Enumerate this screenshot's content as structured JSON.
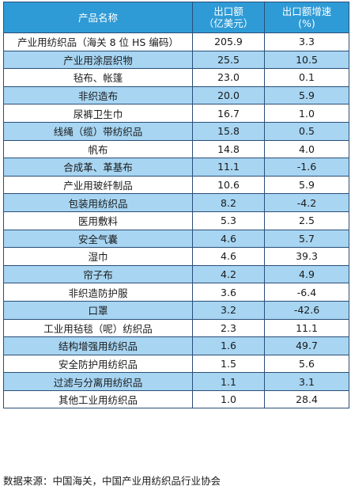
{
  "table": {
    "headers": {
      "product": "产品名称",
      "export_line1": "出口额",
      "export_line2": "（亿美元）",
      "growth_line1": "出口额增速",
      "growth_line2": "(%)"
    },
    "rows": [
      {
        "product": "产业用纺织品（海关 8 位 HS 编码）",
        "export": "205.9",
        "growth": "3.3",
        "shaded": false
      },
      {
        "product": "产业用涂层织物",
        "export": "25.5",
        "growth": "10.5",
        "shaded": true
      },
      {
        "product": "毡布、帐篷",
        "export": "23.0",
        "growth": "0.1",
        "shaded": false
      },
      {
        "product": "非织造布",
        "export": "20.0",
        "growth": "5.9",
        "shaded": true
      },
      {
        "product": "尿裤卫生巾",
        "export": "16.7",
        "growth": "1.0",
        "shaded": false
      },
      {
        "product": "线绳（缆）带纺织品",
        "export": "15.8",
        "growth": "0.5",
        "shaded": true
      },
      {
        "product": "帆布",
        "export": "14.8",
        "growth": "4.0",
        "shaded": false
      },
      {
        "product": "合成革、革基布",
        "export": "11.1",
        "growth": "-1.6",
        "shaded": true
      },
      {
        "product": "产业用玻纤制品",
        "export": "10.6",
        "growth": "5.9",
        "shaded": false
      },
      {
        "product": "包装用纺织品",
        "export": "8.2",
        "growth": "-4.2",
        "shaded": true
      },
      {
        "product": "医用敷料",
        "export": "5.3",
        "growth": "2.5",
        "shaded": false
      },
      {
        "product": "安全气囊",
        "export": "4.6",
        "growth": "5.7",
        "shaded": true
      },
      {
        "product": "湿巾",
        "export": "4.6",
        "growth": "39.3",
        "shaded": false
      },
      {
        "product": "帘子布",
        "export": "4.2",
        "growth": "4.9",
        "shaded": true
      },
      {
        "product": "非织造防护服",
        "export": "3.6",
        "growth": "-6.4",
        "shaded": false
      },
      {
        "product": "口罩",
        "export": "3.2",
        "growth": "-42.6",
        "shaded": true
      },
      {
        "product": "工业用毡毯（呢）纺织品",
        "export": "2.3",
        "growth": "11.1",
        "shaded": false
      },
      {
        "product": "结构增强用纺织品",
        "export": "1.6",
        "growth": "49.7",
        "shaded": true
      },
      {
        "product": "安全防护用纺织品",
        "export": "1.5",
        "growth": "5.6",
        "shaded": false
      },
      {
        "product": "过滤与分离用纺织品",
        "export": "1.1",
        "growth": "3.1",
        "shaded": true
      },
      {
        "product": "其他工业用纺织品",
        "export": "1.0",
        "growth": "28.4",
        "shaded": false
      }
    ]
  },
  "source_note": "数据来源：中国海关，中国产业用纺织品行业协会",
  "colors": {
    "header_bg": "#2e9bd6",
    "shaded_row_bg": "#a7d5f2",
    "border": "#2b4e78"
  }
}
